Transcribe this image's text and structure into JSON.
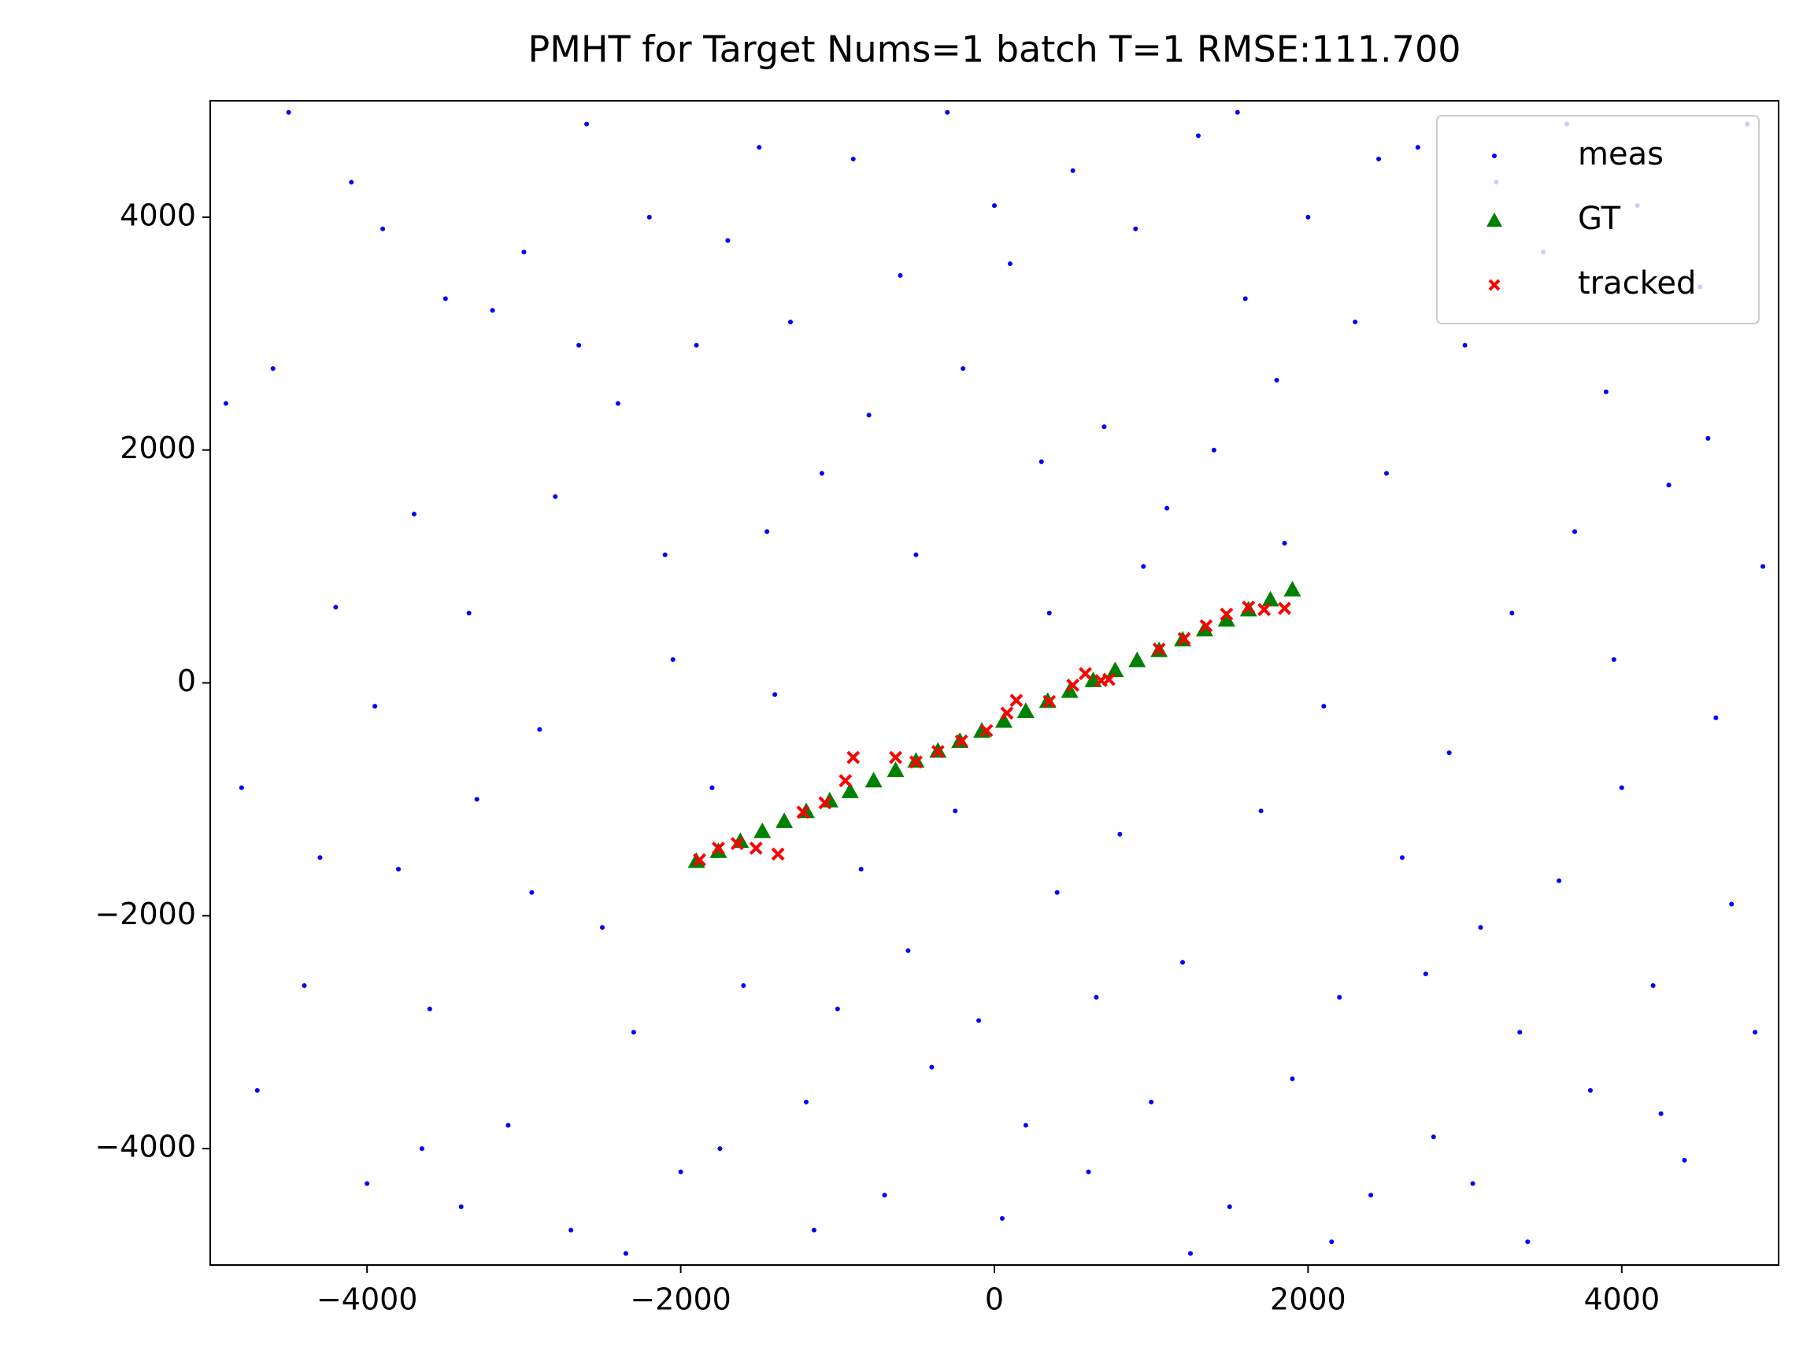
{
  "chart_data": {
    "type": "scatter",
    "title": "PMHT for Target Nums=1 batch T=1 RMSE:111.700",
    "xlim": [
      -5000,
      5000
    ],
    "ylim": [
      -5000,
      5000
    ],
    "xticks": [
      {
        "value": -4000,
        "label": "−4000"
      },
      {
        "value": -2000,
        "label": "−2000"
      },
      0,
      2000,
      4000
    ],
    "yticks": [
      {
        "value": -4000,
        "label": "−4000"
      },
      {
        "value": -2000,
        "label": "−2000"
      },
      0,
      2000,
      4000
    ],
    "legend": "upper right",
    "series": [
      {
        "name": "meas",
        "color": "#0000ff",
        "marker": "dot",
        "x": [
          -4900,
          -4700,
          -4500,
          -4300,
          -4200,
          -4000,
          -3900,
          -3800,
          -3700,
          -3600,
          -3500,
          -3400,
          -3300,
          -3200,
          -3100,
          -3000,
          -2900,
          -2800,
          -2700,
          -2600,
          -2500,
          -2400,
          -2300,
          -2200,
          -2100,
          -2000,
          -1900,
          -1800,
          -1700,
          -1600,
          -1500,
          -1400,
          -1300,
          -1200,
          -1100,
          -1000,
          -900,
          -800,
          -700,
          -600,
          -500,
          -400,
          -300,
          -200,
          -100,
          0,
          100,
          200,
          300,
          400,
          500,
          600,
          700,
          800,
          900,
          1000,
          1100,
          1200,
          1300,
          1400,
          1500,
          1600,
          1700,
          1800,
          1900,
          2000,
          2100,
          2200,
          2300,
          2400,
          2500,
          2600,
          2700,
          2800,
          2900,
          3000,
          3100,
          3200,
          3300,
          3400,
          3500,
          3600,
          3700,
          3800,
          3900,
          4000,
          4100,
          4200,
          4300,
          4400,
          4500,
          4600,
          4700,
          4800,
          4900,
          -4800,
          -4600,
          -4400,
          -4100,
          -3950,
          -3650,
          -3350,
          -2950,
          -2650,
          -2350,
          -2050,
          -1750,
          -1450,
          -1150,
          -850,
          -550,
          -250,
          50,
          350,
          650,
          950,
          1250,
          1550,
          1850,
          2150,
          2450,
          2750,
          3050,
          3350,
          3650,
          3950,
          4250,
          4550,
          4850
        ],
        "values": [
          2400,
          -3500,
          4900,
          -1500,
          650,
          -4300,
          3900,
          -1600,
          1450,
          -2800,
          3300,
          -4500,
          -1000,
          3200,
          -3800,
          3700,
          -400,
          1600,
          -4700,
          4800,
          -2100,
          2400,
          -3000,
          4000,
          1100,
          -4200,
          2900,
          -900,
          3800,
          -2600,
          4600,
          -100,
          3100,
          -3600,
          1800,
          -2800,
          4500,
          2300,
          -4400,
          3500,
          1100,
          -3300,
          4900,
          2700,
          -2900,
          4100,
          3600,
          -3800,
          1900,
          -1800,
          4400,
          -4200,
          2200,
          -1300,
          3900,
          -3600,
          1500,
          -2400,
          4700,
          2000,
          -4500,
          3300,
          -1100,
          2600,
          -3400,
          4000,
          -200,
          -2700,
          3100,
          -4400,
          1800,
          -1500,
          4600,
          -3900,
          -600,
          2900,
          -2100,
          4300,
          600,
          -4800,
          3700,
          -1700,
          1300,
          -3500,
          2500,
          -900,
          4100,
          -2600,
          1700,
          -4100,
          3400,
          -300,
          -1900,
          4800,
          1000,
          -900,
          2700,
          -2600,
          4300,
          -200,
          -4000,
          600,
          -1800,
          2900,
          -4900,
          200,
          -4000,
          1300,
          -4700,
          -1600,
          -2300,
          -1100,
          -4600,
          600,
          -2700,
          1000,
          -4900,
          4900,
          1200,
          -4800,
          4500,
          -2500,
          -4300,
          -3000,
          4800,
          200,
          -3700,
          2100,
          -3000
        ]
      },
      {
        "name": "GT",
        "color": "#008000",
        "marker": "triangle",
        "x": [
          -1900,
          -1760,
          -1620,
          -1480,
          -1340,
          -1200,
          -1050,
          -920,
          -770,
          -630,
          -500,
          -360,
          -220,
          -80,
          60,
          200,
          340,
          480,
          630,
          770,
          910,
          1050,
          1200,
          1340,
          1480,
          1620,
          1760,
          1900
        ],
        "values": [
          -1530,
          -1444,
          -1358,
          -1273,
          -1187,
          -1102,
          -1010,
          -930,
          -838,
          -749,
          -669,
          -583,
          -498,
          -412,
          -326,
          -241,
          -155,
          -69,
          23,
          109,
          195,
          281,
          373,
          459,
          544,
          630,
          716,
          802
        ]
      },
      {
        "name": "tracked",
        "color": "#ff0000",
        "marker": "x",
        "x": [
          -1880,
          -1760,
          -1640,
          -1520,
          -1380,
          -1220,
          -1080,
          -950,
          -900,
          -630,
          -500,
          -360,
          -210,
          -50,
          80,
          140,
          350,
          500,
          580,
          680,
          730,
          1050,
          1210,
          1350,
          1480,
          1620,
          1720,
          1850
        ],
        "values": [
          -1520,
          -1420,
          -1380,
          -1420,
          -1470,
          -1110,
          -1030,
          -840,
          -640,
          -640,
          -680,
          -590,
          -500,
          -410,
          -260,
          -150,
          -160,
          -20,
          80,
          20,
          30,
          290,
          380,
          490,
          590,
          650,
          630,
          640
        ]
      }
    ]
  }
}
